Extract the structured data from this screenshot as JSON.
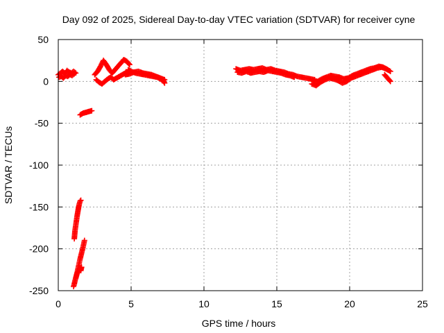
{
  "chart_data": {
    "type": "scatter",
    "title": "Day 092 of 2025, Sidereal Day-to-day VTEC variation (SDTVAR) for receiver cyne",
    "xlabel": "GPS time / hours",
    "ylabel": "SDTVAR / TECUs",
    "xlim": [
      0,
      25
    ],
    "ylim": [
      -250,
      50
    ],
    "xticks": [
      0,
      5,
      10,
      15,
      20,
      25
    ],
    "yticks": [
      -250,
      -200,
      -150,
      -100,
      -50,
      0,
      50
    ],
    "grid": true,
    "marker": "plus",
    "color": "#ff0000",
    "series": [
      {
        "name": "SDTVAR",
        "segments": [
          {
            "x": [
              0.0,
              0.15,
              0.3,
              0.45,
              0.6,
              0.75,
              0.9,
              1.05,
              1.2
            ],
            "y": [
              8,
              10,
              12,
              9,
              13,
              11,
              10,
              12,
              10
            ]
          },
          {
            "x": [
              0.05,
              0.2,
              0.35,
              0.5,
              0.65,
              0.8,
              0.95,
              1.1
            ],
            "y": [
              5,
              6,
              4,
              7,
              6,
              8,
              7,
              9
            ]
          },
          {
            "x": [
              1.5,
              1.7,
              1.9,
              2.1,
              2.3
            ],
            "y": [
              -40,
              -38,
              -37,
              -36,
              -35
            ]
          },
          {
            "x": [
              1.1,
              1.15,
              1.2,
              1.25,
              1.3,
              1.35,
              1.4,
              1.45,
              1.5,
              1.55
            ],
            "y": [
              -188,
              -178,
              -172,
              -166,
              -160,
              -155,
              -150,
              -146,
              -143,
              -142
            ]
          },
          {
            "x": [
              1.05,
              1.1,
              1.15,
              1.2,
              1.25,
              1.3,
              1.35,
              1.4,
              1.45,
              1.5,
              1.55,
              1.6
            ],
            "y": [
              -245,
              -242,
              -238,
              -235,
              -232,
              -229,
              -228,
              -226,
              -225,
              -223,
              -226,
              -222
            ]
          },
          {
            "x": [
              1.2,
              1.3,
              1.4,
              1.5,
              1.6,
              1.7,
              1.8
            ],
            "y": [
              -235,
              -228,
              -220,
              -212,
              -205,
              -198,
              -190
            ]
          },
          {
            "x": [
              2.5,
              2.7,
              2.9,
              3.1,
              3.3,
              3.5,
              3.7,
              3.9,
              4.1,
              4.3,
              4.5,
              4.7,
              4.9
            ],
            "y": [
              8,
              12,
              18,
              25,
              20,
              14,
              10,
              14,
              18,
              22,
              26,
              24,
              20
            ]
          },
          {
            "x": [
              2.6,
              2.8,
              3.0,
              3.2,
              3.4,
              3.6,
              3.8,
              4.0,
              4.2,
              4.4,
              4.6,
              4.8
            ],
            "y": [
              2,
              -1,
              -3,
              0,
              3,
              5,
              2,
              4,
              6,
              8,
              10,
              12
            ]
          },
          {
            "x": [
              4.8,
              5.0,
              5.3,
              5.6,
              5.9,
              6.2,
              6.5,
              6.8,
              7.0,
              7.2,
              7.3
            ],
            "y": [
              14,
              12,
              10,
              9,
              8,
              7,
              6,
              5,
              3,
              1,
              -2
            ]
          },
          {
            "x": [
              4.6,
              4.9,
              5.2,
              5.5,
              5.8,
              6.1,
              6.4,
              6.7,
              7.0,
              7.3
            ],
            "y": [
              8,
              9,
              11,
              12,
              10,
              9,
              8,
              6,
              4,
              2
            ]
          },
          {
            "x": [
              12.2,
              12.5,
              12.8,
              13.1,
              13.4,
              13.7,
              14.0,
              14.3,
              14.6,
              14.9,
              15.2,
              15.5,
              15.8,
              16.1,
              16.4,
              16.7,
              17.0,
              17.3,
              17.6
            ],
            "y": [
              15,
              13,
              14,
              15,
              14,
              15,
              16,
              14,
              15,
              13,
              12,
              11,
              9,
              8,
              6,
              5,
              4,
              3,
              2
            ]
          },
          {
            "x": [
              12.3,
              12.6,
              12.9,
              13.2,
              13.5,
              13.8,
              14.1,
              14.4,
              14.7,
              15.0,
              15.3,
              15.6,
              15.9,
              16.2
            ],
            "y": [
              11,
              10,
              12,
              10,
              11,
              12,
              11,
              13,
              12,
              11,
              10,
              8,
              7,
              5
            ]
          },
          {
            "x": [
              17.4,
              17.7,
              18.0,
              18.3,
              18.6,
              18.9,
              19.2,
              19.5,
              19.8,
              20.1,
              20.4,
              20.7,
              21.0,
              21.3,
              21.6,
              21.9,
              22.2,
              22.5,
              22.8
            ],
            "y": [
              -3,
              -5,
              -1,
              2,
              4,
              3,
              1,
              -2,
              0,
              4,
              6,
              8,
              10,
              12,
              14,
              16,
              17,
              15,
              12
            ]
          },
          {
            "x": [
              17.5,
              17.8,
              18.1,
              18.4,
              18.7,
              19.0,
              19.3,
              19.6,
              19.9,
              20.2,
              20.5,
              20.8,
              21.1,
              21.4,
              21.7,
              22.0,
              22.3,
              22.6
            ],
            "y": [
              1,
              0,
              3,
              5,
              7,
              6,
              5,
              3,
              4,
              7,
              9,
              11,
              13,
              15,
              16,
              18,
              17,
              14
            ]
          },
          {
            "x": [
              22.4,
              22.6,
              22.7,
              22.8
            ],
            "y": [
              8,
              4,
              2,
              0
            ]
          }
        ]
      }
    ]
  }
}
